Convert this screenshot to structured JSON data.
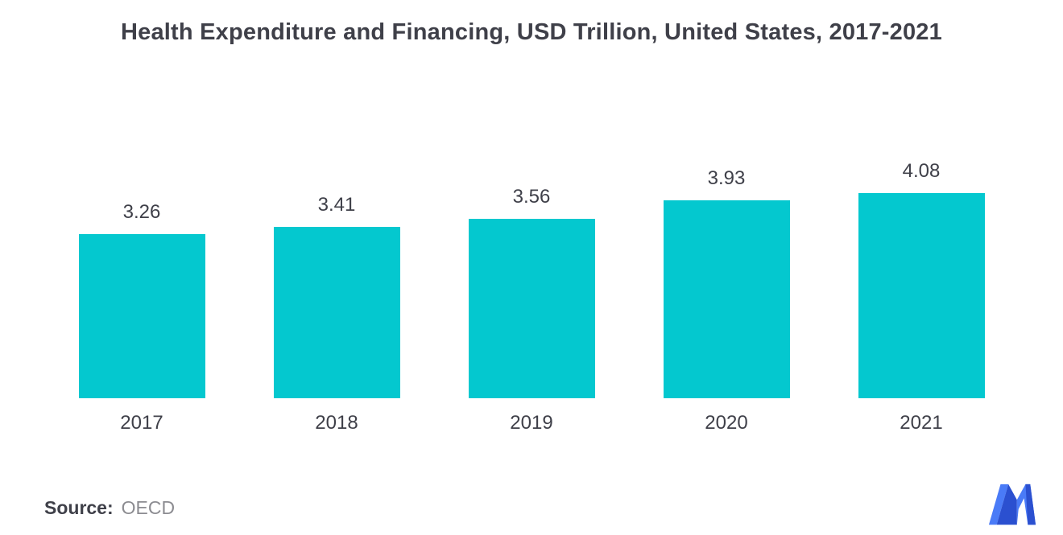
{
  "title": "Health Expenditure and Financing, USD Trillion, United States, 2017-2021",
  "source": {
    "label": "Source:",
    "value": "OECD"
  },
  "colors": {
    "bar": "#04C8CF",
    "title_text": "#3F4049",
    "axis_text": "#3F4049",
    "source_value_text": "#8C8C91",
    "logo_blue_light": "#4A7BF7",
    "logo_blue_dark": "#2B50D0"
  },
  "icons": {
    "brand_logo": "mordor-intelligence-logo"
  },
  "chart_data": {
    "type": "bar",
    "title": "Health Expenditure and Financing, USD Trillion, United States, 2017-2021",
    "categories": [
      "2017",
      "2018",
      "2019",
      "2020",
      "2021"
    ],
    "values": [
      3.26,
      3.41,
      3.56,
      3.93,
      4.08
    ],
    "value_labels": [
      "3.26",
      "3.41",
      "3.56",
      "3.93",
      "4.08"
    ],
    "xlabel": "",
    "ylabel": "",
    "unit": "USD Trillion",
    "ylim": [
      0,
      4.4
    ],
    "grid": false,
    "legend": false,
    "bar_color": "#04C8CF"
  }
}
